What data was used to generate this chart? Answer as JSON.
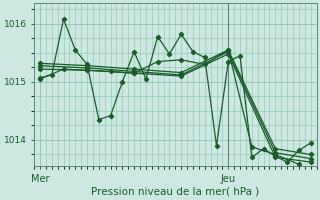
{
  "title": "Pression niveau de la mer( hPa )",
  "xlabel_ticks": [
    "Mer",
    "Jeu"
  ],
  "ylabel_ticks": [
    1014,
    1015,
    1016
  ],
  "ylim": [
    1013.55,
    1016.35
  ],
  "xlim": [
    0,
    48
  ],
  "bg_color": "#cce8e0",
  "line_color": "#1a5c2a",
  "grid_color": "#90c0b0",
  "vline_color": "#5a8a7a",
  "mer_x": 1,
  "jeu_x": 33,
  "vline_x": 33,
  "lines": [
    {
      "x": [
        1,
        3,
        5,
        7,
        9,
        11,
        13,
        15,
        17,
        19,
        21,
        23,
        25,
        27,
        29,
        31,
        33,
        35,
        37,
        39,
        41,
        43,
        45,
        47
      ],
      "y": [
        1015.07,
        1015.12,
        1016.08,
        1015.55,
        1015.3,
        1014.35,
        1014.42,
        1015.0,
        1015.52,
        1015.05,
        1015.78,
        1015.48,
        1015.82,
        1015.52,
        1015.42,
        1013.9,
        1015.35,
        1015.45,
        1013.7,
        1013.85,
        1013.72,
        1013.62,
        1013.82,
        1013.95
      ]
    },
    {
      "x": [
        1,
        9,
        17,
        25,
        33,
        41,
        47
      ],
      "y": [
        1015.32,
        1015.28,
        1015.22,
        1015.16,
        1015.55,
        1013.85,
        1013.75
      ]
    },
    {
      "x": [
        1,
        9,
        17,
        25,
        33,
        41,
        47
      ],
      "y": [
        1015.28,
        1015.24,
        1015.18,
        1015.12,
        1015.52,
        1013.78,
        1013.68
      ]
    },
    {
      "x": [
        1,
        9,
        17,
        25,
        33,
        41,
        47
      ],
      "y": [
        1015.22,
        1015.2,
        1015.15,
        1015.1,
        1015.48,
        1013.7,
        1013.62
      ]
    },
    {
      "x": [
        1,
        5,
        9,
        13,
        17,
        21,
        25,
        29,
        33,
        37,
        41,
        45
      ],
      "y": [
        1015.05,
        1015.22,
        1015.2,
        1015.18,
        1015.15,
        1015.35,
        1015.38,
        1015.3,
        1015.55,
        1013.88,
        1013.75,
        1013.58
      ]
    }
  ]
}
